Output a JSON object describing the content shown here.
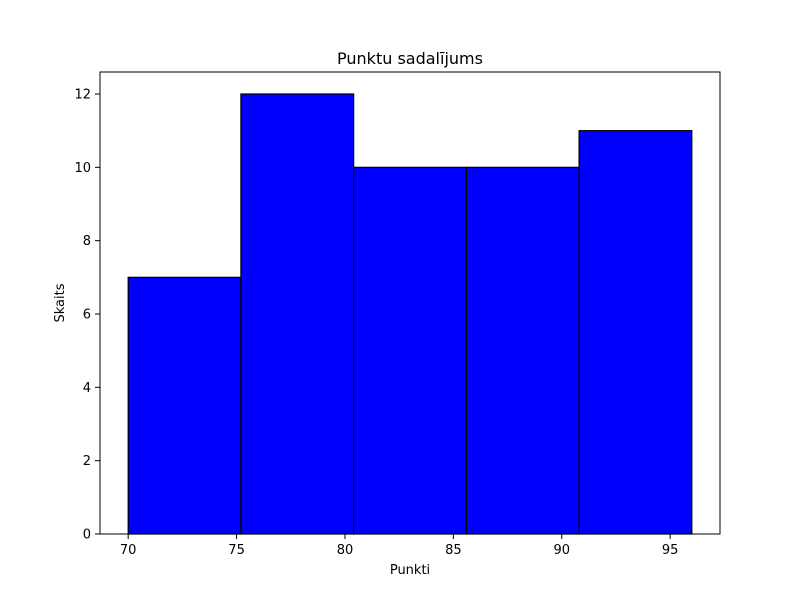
{
  "chart_data": {
    "type": "bar",
    "title": "Punktu sadalījums",
    "xlabel": "Punkti",
    "ylabel": "Skaits",
    "bins": [
      {
        "start": 70.0,
        "end": 75.2,
        "count": 7
      },
      {
        "start": 75.2,
        "end": 80.4,
        "count": 12
      },
      {
        "start": 80.4,
        "end": 85.6,
        "count": 10
      },
      {
        "start": 85.6,
        "end": 90.8,
        "count": 10
      },
      {
        "start": 90.8,
        "end": 96.0,
        "count": 11
      }
    ],
    "xlim": [
      68.7,
      97.3
    ],
    "ylim": [
      0,
      12.6
    ],
    "xticks": [
      70,
      75,
      80,
      85,
      90,
      95
    ],
    "yticks": [
      0,
      2,
      4,
      6,
      8,
      10,
      12
    ],
    "grid": false,
    "bar_color": "#0000ff",
    "edge_color": "#000000"
  }
}
